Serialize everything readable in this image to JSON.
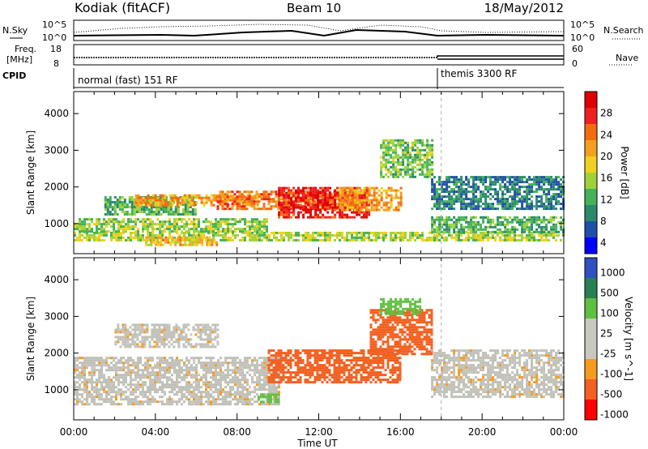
{
  "header": {
    "station": "Kodiak (fitACF)",
    "beam": "Beam 10",
    "date": "18/May/2012"
  },
  "panels": {
    "nsky_label": "N.Sky",
    "nsearch_label": "N.Search",
    "nsky_ticks": [
      "10^5",
      "10^0"
    ],
    "nsearch_ticks": [
      "10^5",
      "10^0"
    ],
    "freq_label_1": "Freq.",
    "freq_label_2": "[MHz]",
    "freq_ticks": [
      "18",
      "8"
    ],
    "nave_label": "Nave",
    "nave_ticks": [
      "60",
      "0"
    ],
    "cpid_label": "CPID",
    "cpid_modes": [
      "normal (fast) 151 RF",
      "themis 3300 RF"
    ]
  },
  "colors": {
    "power": [
      "#0000ff",
      "#1f4fa8",
      "#2a8a6a",
      "#44b25a",
      "#9fd23a",
      "#f0d020",
      "#f3a020",
      "#f36c10",
      "#f02020",
      "#e00000"
    ],
    "velocity": [
      "#ff0000",
      "#f36020",
      "#f39c20",
      "#c8c8c0",
      "#c8c8c0",
      "#5ec040",
      "#2a8050",
      "#3050c0"
    ],
    "velocity_gray": "#c0c0b8"
  },
  "chart_data": [
    {
      "type": "heatmap",
      "title": "",
      "xlabel": "",
      "ylabel": "Slant Range [km]",
      "colorbar_label": "Power [dB]",
      "colorbar_ticks": [
        "28",
        "24",
        "20",
        "16",
        "12",
        "8",
        "4"
      ],
      "x_ticks": [
        "00:00",
        "04:00",
        "08:00",
        "12:00",
        "16:00",
        "20:00",
        "00:00"
      ],
      "y_ticks": [
        "4000",
        "3000",
        "2000",
        "1000"
      ],
      "xlim": [
        0,
        24
      ],
      "ylim": [
        180,
        4600
      ],
      "clim": [
        0,
        30
      ],
      "regions": [
        {
          "t": [
            0,
            24
          ],
          "r": [
            550,
            780
          ],
          "v": 14
        },
        {
          "t": [
            0,
            9.5
          ],
          "r": [
            780,
            1150
          ],
          "v": 13
        },
        {
          "t": [
            1.5,
            6
          ],
          "r": [
            1250,
            1750
          ],
          "v": 10
        },
        {
          "t": [
            3,
            9
          ],
          "r": [
            1500,
            1800
          ],
          "v": 20
        },
        {
          "t": [
            7,
            14
          ],
          "r": [
            1400,
            1900
          ],
          "v": 22
        },
        {
          "t": [
            10,
            14.5
          ],
          "r": [
            1150,
            2000
          ],
          "v": 27
        },
        {
          "t": [
            13,
            16
          ],
          "r": [
            1400,
            2000
          ],
          "v": 20
        },
        {
          "t": [
            15,
            17.5
          ],
          "r": [
            2300,
            3300
          ],
          "v": 12
        },
        {
          "t": [
            17.5,
            24
          ],
          "r": [
            1400,
            2300
          ],
          "v": 7
        },
        {
          "t": [
            17.5,
            24
          ],
          "r": [
            800,
            1200
          ],
          "v": 10
        },
        {
          "t": [
            3.5,
            7
          ],
          "r": [
            400,
            650
          ],
          "v": 18
        }
      ]
    },
    {
      "type": "heatmap",
      "title": "",
      "xlabel": "Time UT",
      "ylabel": "Slant Range [km]",
      "colorbar_label": "Velocity [m s^-1]",
      "colorbar_ticks": [
        "1000",
        "500",
        "100",
        "25",
        "-25",
        "-100",
        "-500",
        "-1000"
      ],
      "x_ticks": [
        "00:00",
        "04:00",
        "08:00",
        "12:00",
        "16:00",
        "20:00",
        "00:00"
      ],
      "y_ticks": [
        "4000",
        "3000",
        "2000",
        "1000"
      ],
      "xlim": [
        0,
        24
      ],
      "ylim": [
        180,
        4600
      ],
      "clim": [
        -1000,
        1000
      ],
      "regions": [
        {
          "t": [
            0,
            10
          ],
          "r": [
            600,
            1900
          ],
          "v": 0
        },
        {
          "t": [
            2,
            7
          ],
          "r": [
            2200,
            2800
          ],
          "v": 0
        },
        {
          "t": [
            9.5,
            16
          ],
          "r": [
            1200,
            2100
          ],
          "v": -200
        },
        {
          "t": [
            14.5,
            17.5
          ],
          "r": [
            2000,
            3200
          ],
          "v": -300
        },
        {
          "t": [
            9,
            10
          ],
          "r": [
            700,
            900
          ],
          "v": 300
        },
        {
          "t": [
            17.5,
            24
          ],
          "r": [
            800,
            2100
          ],
          "v": 0
        },
        {
          "t": [
            15,
            17
          ],
          "r": [
            3100,
            3500
          ],
          "v": 200
        }
      ]
    }
  ]
}
